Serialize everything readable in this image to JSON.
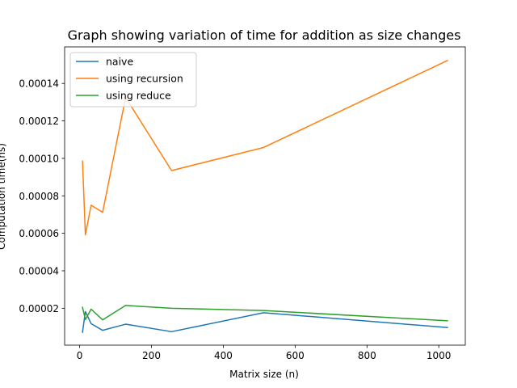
{
  "chart_data": {
    "type": "line",
    "title": "Graph showing variation of time for addition as size changes",
    "xlabel": "Matrix size (n)",
    "ylabel": "Computation time(ns)",
    "xlim": [
      -41.8,
      1073.8
    ],
    "ylim": [
      3e-07,
      0.0001595
    ],
    "xticks": [
      0,
      200,
      400,
      600,
      800,
      1000
    ],
    "xtick_labels": [
      "0",
      "200",
      "400",
      "600",
      "800",
      "1000"
    ],
    "yticks": [
      2e-05,
      4e-05,
      6e-05,
      8e-05,
      0.0001,
      0.00012,
      0.00014
    ],
    "ytick_labels": [
      "0.00002",
      "0.00004",
      "0.00006",
      "0.00008",
      "0.00010",
      "0.00012",
      "0.00014"
    ],
    "grid": false,
    "legend_position": "top-left",
    "x": [
      8,
      16,
      32,
      64,
      128,
      256,
      512,
      1024
    ],
    "series": [
      {
        "name": "naive",
        "color": "#1f77b4",
        "values": [
          7.2e-06,
          1.82e-05,
          1.18e-05,
          8.2e-06,
          1.15e-05,
          7.5e-06,
          1.76e-05,
          9.7e-06
        ]
      },
      {
        "name": "using recursion",
        "color": "#ff7f0e",
        "values": [
          9.85e-05,
          5.92e-05,
          7.5e-05,
          7.12e-05,
          0.0001325,
          9.35e-05,
          0.0001058,
          0.0001522
        ]
      },
      {
        "name": "using reduce",
        "color": "#2ca02c",
        "values": [
          2.05e-05,
          1.4e-05,
          1.95e-05,
          1.38e-05,
          2.15e-05,
          2e-05,
          1.88e-05,
          1.33e-05
        ]
      }
    ]
  }
}
